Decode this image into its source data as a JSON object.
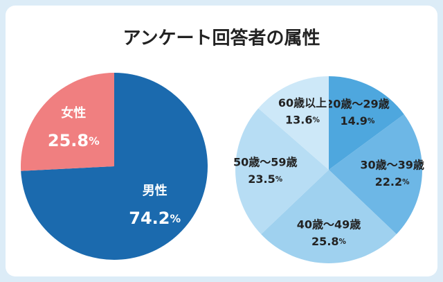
{
  "title": "アンケート回答者の属性",
  "chart_data": [
    {
      "type": "pie",
      "categories": [
        "男性",
        "女性"
      ],
      "values": [
        74.2,
        25.8
      ],
      "value_labels": [
        "74.2%",
        "25.8%"
      ],
      "colors": [
        "#1b6aae",
        "#f07f80"
      ]
    },
    {
      "type": "pie",
      "categories": [
        "20歳～29歳",
        "30歳～39歳",
        "40歳～49歳",
        "50歳～59歳",
        "60歳以上"
      ],
      "values": [
        14.9,
        22.2,
        25.8,
        23.5,
        13.6
      ],
      "value_labels": [
        "14.9%",
        "22.2%",
        "25.8%",
        "23.5%",
        "13.6%"
      ],
      "colors": [
        "#4ea7de",
        "#6db7e6",
        "#9fd1ef",
        "#b7ddf4",
        "#cde8f8"
      ]
    }
  ]
}
